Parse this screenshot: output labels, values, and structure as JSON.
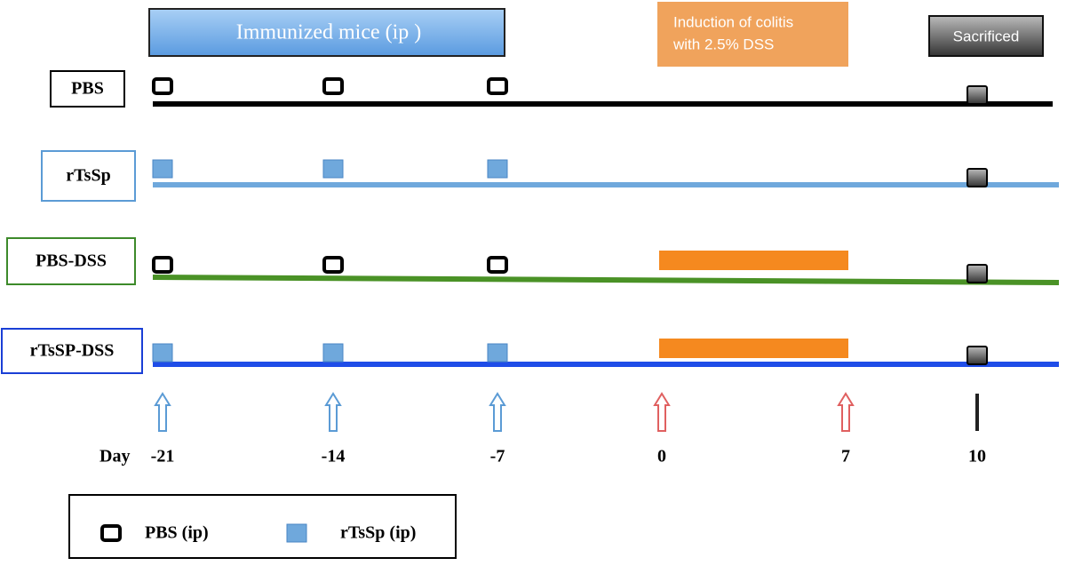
{
  "header": {
    "immunized": "Immunized mice (ip )",
    "induction": [
      "Induction of colitis",
      "with 2.5% DSS"
    ],
    "sacrificed": "Sacrificed"
  },
  "groups": [
    {
      "label": "PBS"
    },
    {
      "label": "rTsSp"
    },
    {
      "label": "PBS-DSS"
    },
    {
      "label": "rTsSP-DSS"
    }
  ],
  "timeline": {
    "axis_label": "Day",
    "days": [
      "-21",
      "-14",
      "-7",
      "0",
      "7",
      "10"
    ]
  },
  "legend": {
    "items": [
      "PBS (ip)",
      "rTsSp (ip)"
    ]
  }
}
